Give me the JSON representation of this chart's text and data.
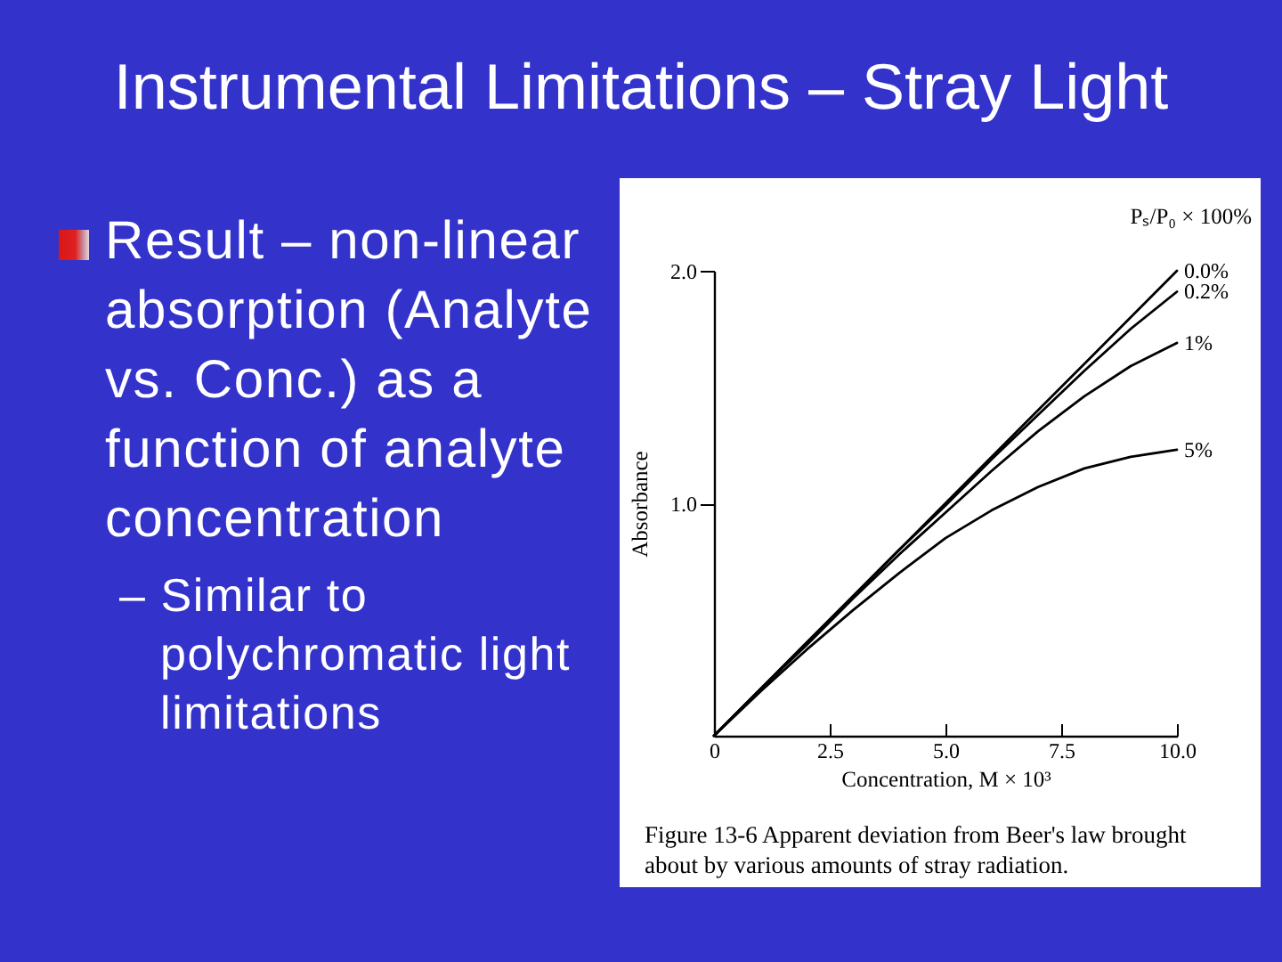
{
  "chart_data": {
    "type": "line",
    "title": "Instrumental Limitations – Stray Light",
    "xlabel": "Concentration, M × 10³",
    "ylabel": "Absorbance",
    "legend_title": "Pₛ/P₀ × 100%",
    "annotations": [
      "Result – non-linear absorption (Analyte vs. Conc.) as a function of analyte concentration",
      "– Similar to polychromatic light limitations",
      "Figure 13-6 Apparent deviation from Beer's law brought about by various amounts of stray radiation."
    ],
    "x": [
      0,
      1,
      2,
      3,
      4,
      5,
      6,
      7,
      8,
      9,
      10
    ],
    "series": [
      {
        "name": "0.0%",
        "color": "#000000",
        "values": [
          0,
          0.2,
          0.4,
          0.6,
          0.8,
          1.0,
          1.2,
          1.4,
          1.6,
          1.8,
          2.0
        ]
      },
      {
        "name": "0.2%",
        "color": "#000000",
        "values": [
          0,
          0.2,
          0.4,
          0.6,
          0.8,
          0.99,
          1.19,
          1.38,
          1.57,
          1.75,
          1.91
        ]
      },
      {
        "name": "1%",
        "color": "#000000",
        "values": [
          0,
          0.2,
          0.39,
          0.59,
          0.78,
          0.96,
          1.14,
          1.31,
          1.46,
          1.59,
          1.69
        ]
      },
      {
        "name": "5%",
        "color": "#000000",
        "values": [
          0,
          0.19,
          0.37,
          0.54,
          0.7,
          0.85,
          0.97,
          1.07,
          1.15,
          1.2,
          1.23
        ]
      }
    ],
    "xlim": [
      0,
      10
    ],
    "ylim": [
      0,
      2
    ],
    "xticks": [
      0,
      2.5,
      {
        "value": 5,
        "label": "5.0"
      },
      7.5,
      {
        "value": 10,
        "label": "10.0"
      }
    ],
    "yticks": [
      {
        "value": 1,
        "label": "1.0"
      },
      {
        "value": 2,
        "label": "2.0"
      }
    ],
    "grid": false,
    "legend": false,
    "marker": "none",
    "line_style": "solid"
  }
}
